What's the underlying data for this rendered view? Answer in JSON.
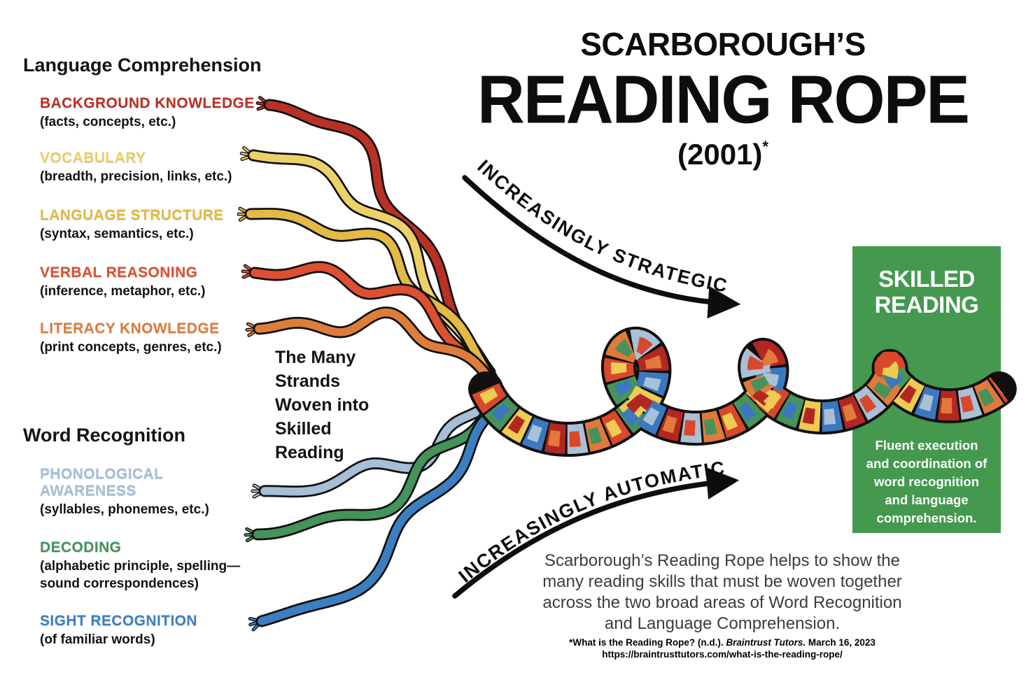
{
  "title": {
    "line1": "SCARBOROUGH’S",
    "line2": "READING ROPE",
    "line3": "(2001)",
    "asterisk": "*"
  },
  "language_comprehension": {
    "heading": "Language Comprehension",
    "strands": [
      {
        "label": "BACKGROUND KNOWLEDGE",
        "sub": "(facts, concepts, etc.)",
        "color": "#b93126"
      },
      {
        "label": "VOCABULARY",
        "sub": "(breadth, precision, links, etc.)",
        "color": "#ecd169"
      },
      {
        "label": "LANGUAGE STRUCTURE",
        "sub": "(syntax, semantics, etc.)",
        "color": "#e2ba45"
      },
      {
        "label": "VERBAL REASONING",
        "sub": "(inference, metaphor, etc.)",
        "color": "#dc5031"
      },
      {
        "label": "LITERACY KNOWLEDGE",
        "sub": "(print concepts, genres, etc.)",
        "color": "#de7d3a"
      }
    ]
  },
  "word_recognition": {
    "heading": "Word Recognition",
    "strands": [
      {
        "label": "PHONOLOGICAL AWARENESS",
        "sub": "(syllables, phonemes, etc.)",
        "color": "#a6bed6"
      },
      {
        "label": "DECODING",
        "sub": "(alphabetic principle, spelling—sound correspondences)",
        "color": "#43935a"
      },
      {
        "label": "SIGHT RECOGNITION",
        "sub": "(of familiar words)",
        "color": "#3c7fc1"
      }
    ]
  },
  "center_caption": {
    "lines": [
      "The Many",
      "Strands",
      "Woven into",
      "Skilled",
      "Reading"
    ]
  },
  "arrows": {
    "strategic": "INCREASINGLY STRATEGIC",
    "automatic": "INCREASINGLY AUTOMATIC"
  },
  "skilled_reading_box": {
    "title_line1": "SKILLED",
    "title_line2": "READING",
    "desc_lines": [
      "Fluent execution",
      "and coordination of",
      "word recognition",
      "and language",
      "comprehension."
    ],
    "bg_color": "#44994f"
  },
  "bottom": {
    "paragraph_lines": [
      "Scarborough’s Reading Rope helps to show the",
      "many reading skills that must be woven together",
      "across the two broad areas of Word Recognition",
      "and Language Comprehension."
    ],
    "footnote_pre": "*What is the Reading Rope? (n.d.). ",
    "footnote_italic": "Braintrust Tutors.",
    "footnote_post": " March 16, 2023",
    "footnote_url": "https://braintrusttutors.com/what-is-the-reading-rope/"
  },
  "rope": {
    "outline": "#101010",
    "cable_palette": [
      "#d9482c",
      "#47935b",
      "#eecb52",
      "#3c78bd",
      "#b32723",
      "#a9c0d6",
      "#e2793a"
    ]
  }
}
